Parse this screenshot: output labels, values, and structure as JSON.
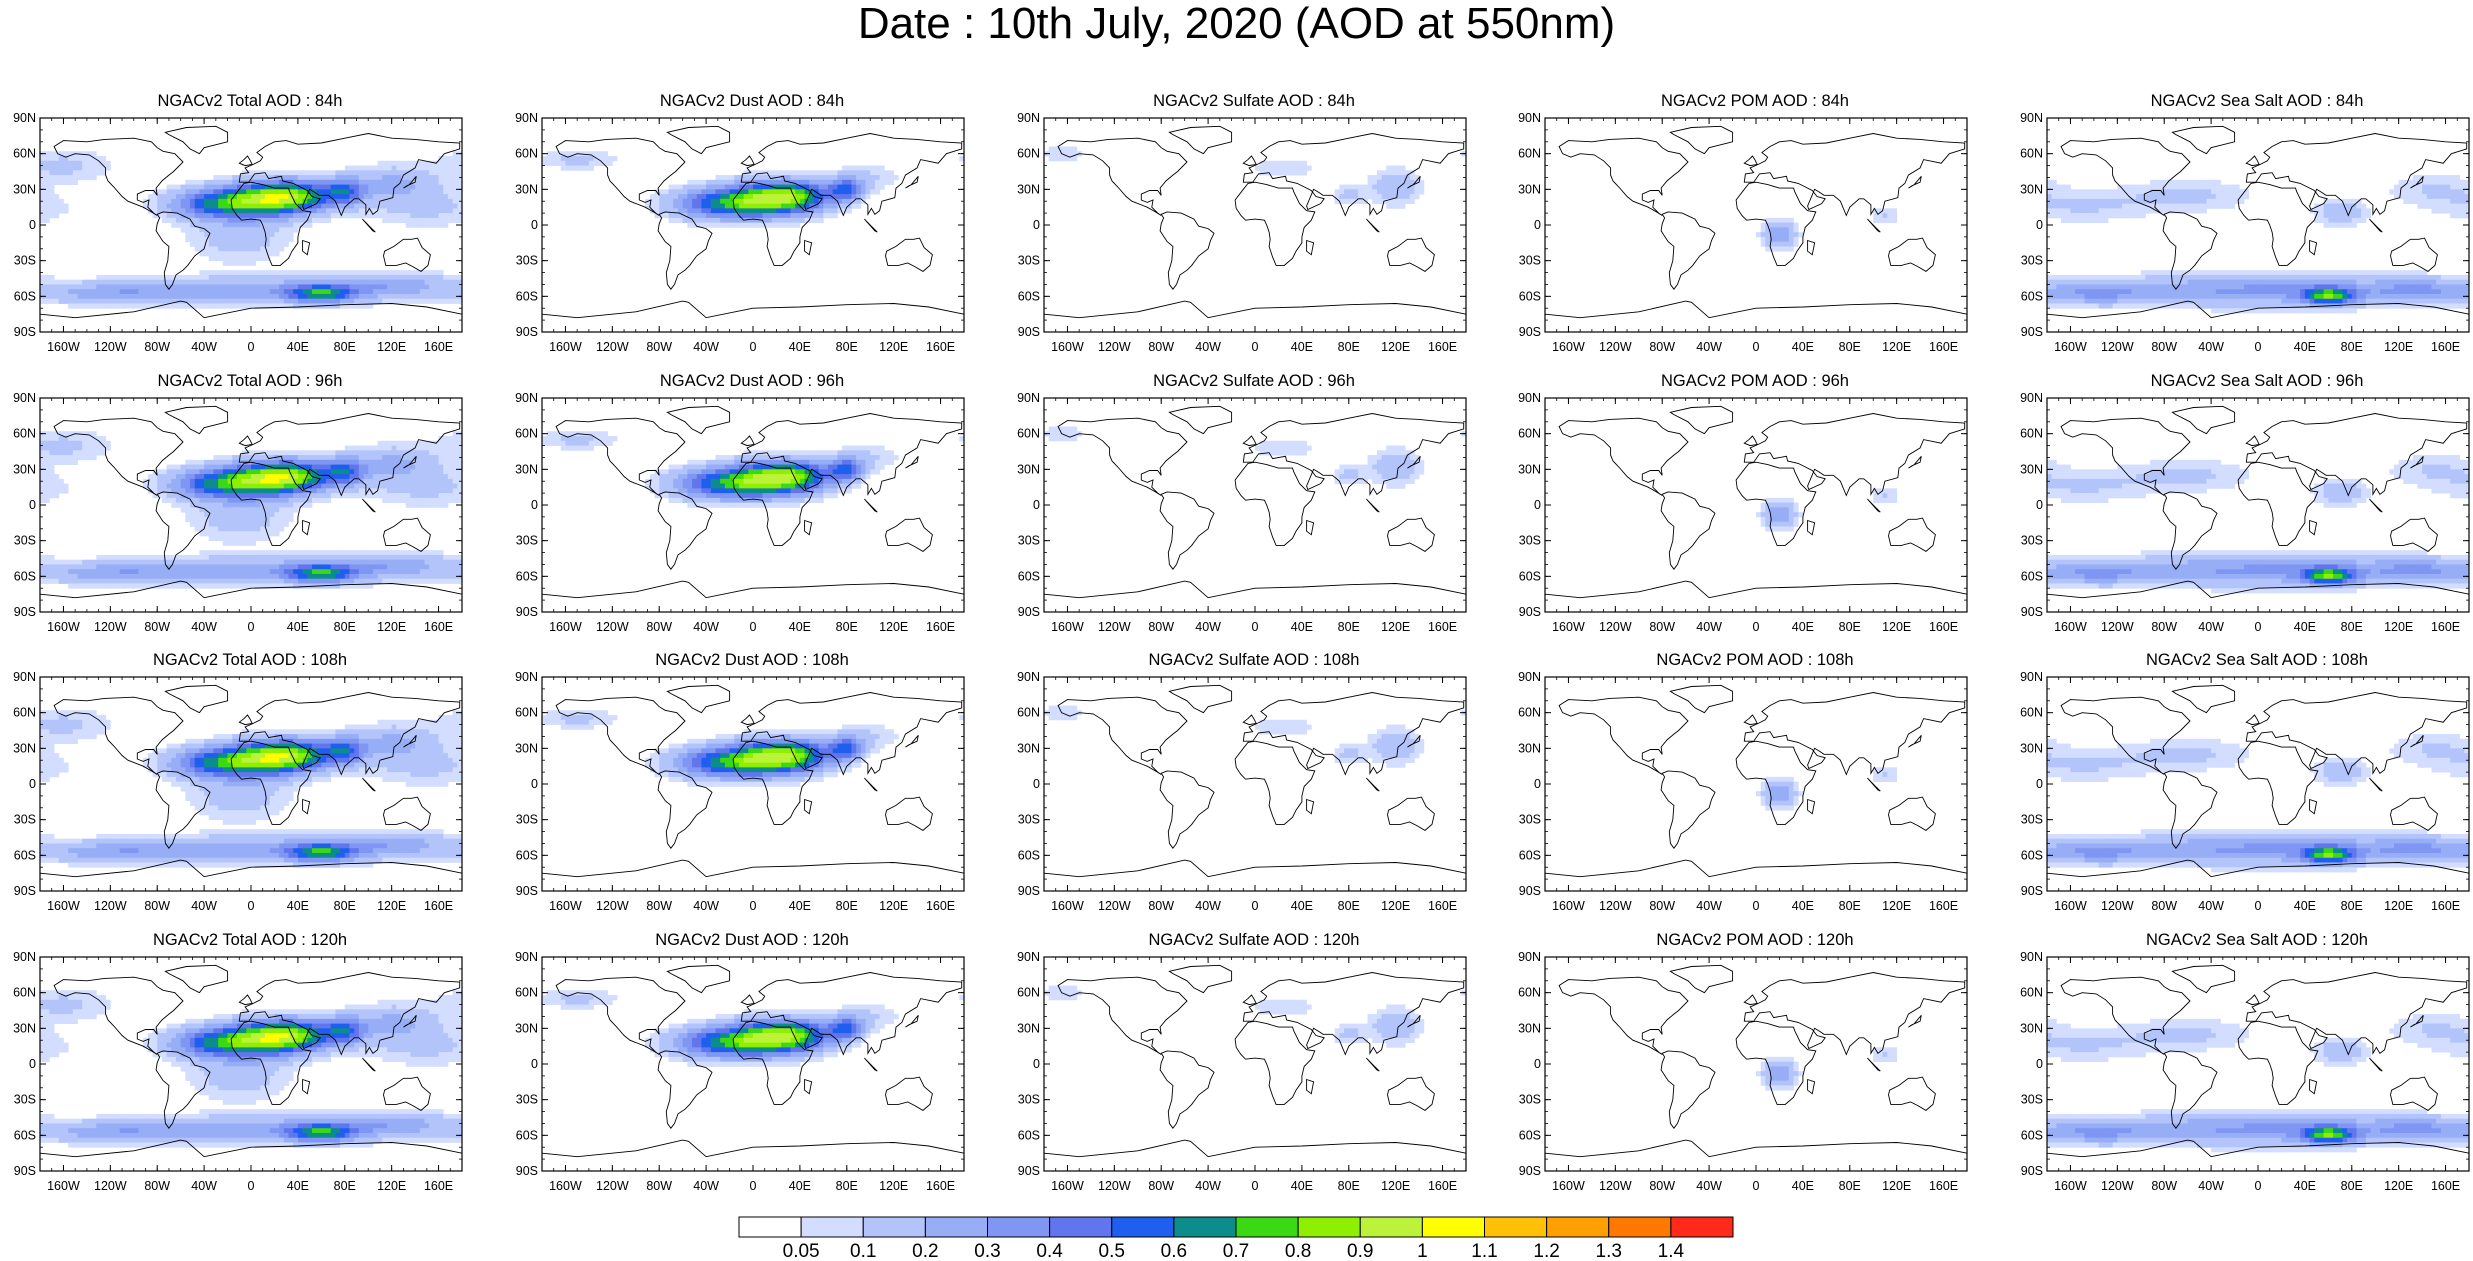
{
  "title": "Date : 10th July, 2020 (AOD at 550nm)",
  "lat_ticks": [
    "90N",
    "60N",
    "30N",
    "0",
    "30S",
    "60S",
    "90S"
  ],
  "lon_ticks": [
    "160W",
    "120W",
    "80W",
    "40W",
    "0",
    "40E",
    "80E",
    "120E",
    "160E"
  ],
  "lon_tick_values": [
    -160,
    -120,
    -80,
    -40,
    0,
    40,
    80,
    120,
    160
  ],
  "panels": [
    {
      "title": "NGACv2 Total AOD : 84h",
      "species": "total"
    },
    {
      "title": "NGACv2 Dust AOD : 84h",
      "species": "dust"
    },
    {
      "title": "NGACv2 Sulfate AOD : 84h",
      "species": "sulfate"
    },
    {
      "title": "NGACv2 POM AOD : 84h",
      "species": "pom"
    },
    {
      "title": "NGACv2 Sea Salt AOD : 84h",
      "species": "seasalt"
    },
    {
      "title": "NGACv2 Total AOD : 96h",
      "species": "total"
    },
    {
      "title": "NGACv2 Dust AOD : 96h",
      "species": "dust"
    },
    {
      "title": "NGACv2 Sulfate AOD : 96h",
      "species": "sulfate"
    },
    {
      "title": "NGACv2 POM AOD : 96h",
      "species": "pom"
    },
    {
      "title": "NGACv2 Sea Salt AOD : 96h",
      "species": "seasalt"
    },
    {
      "title": "NGACv2 Total AOD : 108h",
      "species": "total"
    },
    {
      "title": "NGACv2 Dust AOD : 108h",
      "species": "dust"
    },
    {
      "title": "NGACv2 Sulfate AOD : 108h",
      "species": "sulfate"
    },
    {
      "title": "NGACv2 POM AOD : 108h",
      "species": "pom"
    },
    {
      "title": "NGACv2 Sea Salt AOD : 108h",
      "species": "seasalt"
    },
    {
      "title": "NGACv2 Total AOD : 120h",
      "species": "total"
    },
    {
      "title": "NGACv2 Dust AOD : 120h",
      "species": "dust"
    },
    {
      "title": "NGACv2 Sulfate AOD : 120h",
      "species": "sulfate"
    },
    {
      "title": "NGACv2 POM AOD : 120h",
      "species": "pom"
    },
    {
      "title": "NGACv2 Sea Salt  AOD : 120h",
      "species": "seasalt"
    }
  ],
  "colorbar": {
    "labels": [
      "0.05",
      "0.1",
      "0.2",
      "0.3",
      "0.4",
      "0.5",
      "0.6",
      "0.7",
      "0.8",
      "0.9",
      "1",
      "1.1",
      "1.2",
      "1.3",
      "1.4"
    ],
    "colors": [
      "#ffffff",
      "#d2ddff",
      "#b3c4fb",
      "#97aef7",
      "#7f96f2",
      "#6176ec",
      "#1f5fef",
      "#0d8c8c",
      "#3bd914",
      "#8ef000",
      "#bdf23a",
      "#ffff00",
      "#ffc107",
      "#ff9f00",
      "#ff7800",
      "#ff2a1a"
    ]
  }
}
